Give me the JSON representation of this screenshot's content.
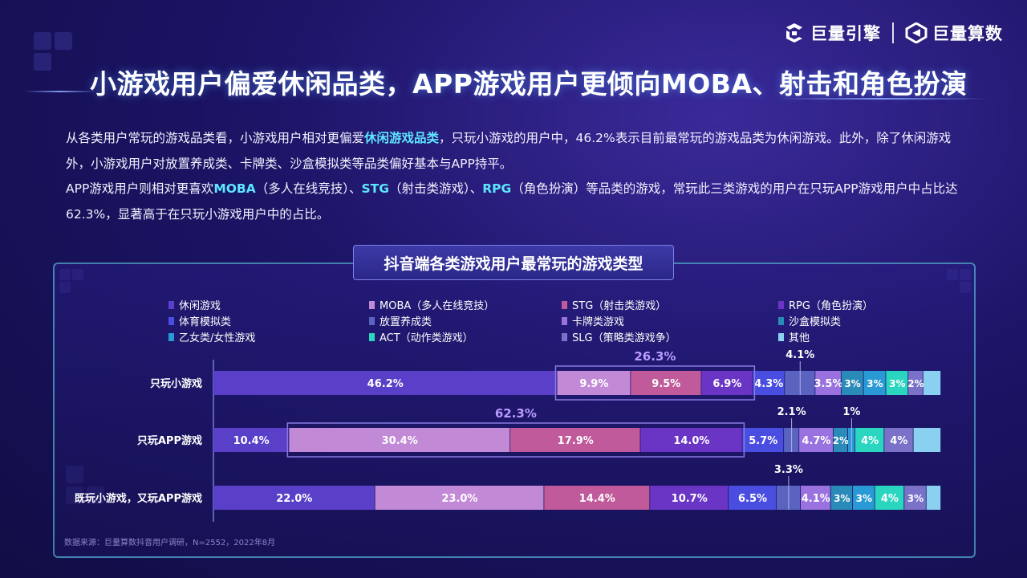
{
  "brand": {
    "logo1": "巨量引擎",
    "logo2": "巨量算数"
  },
  "title": "小游戏用户偏爱休闲品类，APP游戏用户更倾向MOBA、射击和角色扮演",
  "paragraphs": {
    "p1_a": "从各类用户常玩的游戏品类看，小游戏用户相对更偏爱",
    "p1_hl": "休闲游戏品类",
    "p1_b": "，只玩小游戏的用户中，46.2%表示目前最常玩的游戏品类为休闲游戏。此外，除了休闲游戏外，小游戏用户对放置养成类、卡牌类、沙盒模拟类等品类偏好基本与APP持平。",
    "p2_a": "APP游戏用户则相对更喜欢",
    "p2_hl1": "MOBA",
    "p2_b": "（多人在线竞技）、",
    "p2_hl2": "STG",
    "p2_c": "（射击类游戏）、",
    "p2_hl3": "RPG",
    "p2_d": "（角色扮演）等品类的游戏，常玩此三类游戏的用户在只玩APP游戏用户中占比达62.3%，显著高于在只玩小游戏用户中的占比。"
  },
  "source": "数据来源：巨量算数抖音用户调研，N=2552，2022年8月",
  "chart_data": {
    "type": "bar",
    "orientation": "horizontal",
    "stacked": true,
    "title": "抖音端各类游戏用户最常玩的游戏类型",
    "legend_position": "top",
    "categories": [
      "只玩小游戏",
      "只玩APP游戏",
      "既玩小游戏，又玩APP游戏"
    ],
    "series": [
      {
        "name": "休闲游戏",
        "color": "#5a3fc8",
        "values": [
          46.2,
          10.4,
          22.0
        ],
        "labels": [
          "46.2%",
          "10.4%",
          "22.0%"
        ]
      },
      {
        "name": "MOBA（多人在线竞技）",
        "color": "#c28ad6",
        "values": [
          9.9,
          30.4,
          23.0
        ],
        "labels": [
          "9.9%",
          "30.4%",
          "23.0%"
        ]
      },
      {
        "name": "STG（射击类游戏）",
        "color": "#c05a9a",
        "values": [
          9.5,
          17.9,
          14.4
        ],
        "labels": [
          "9.5%",
          "17.9%",
          "14.4%"
        ]
      },
      {
        "name": "RPG（角色扮演）",
        "color": "#6a35c4",
        "values": [
          6.9,
          14.0,
          10.7
        ],
        "labels": [
          "6.9%",
          "14.0%",
          "10.7%"
        ]
      },
      {
        "name": "体育模拟类",
        "color": "#4a4ee0",
        "values": [
          4.3,
          5.7,
          6.5
        ],
        "labels": [
          "4.3%",
          "5.7%",
          "6.5%"
        ]
      },
      {
        "name": "放置养成类",
        "color": "#5a64c0",
        "values": [
          4.1,
          2.1,
          3.3
        ],
        "labels": [
          "4.1%",
          "2.1%",
          "3.3%"
        ]
      },
      {
        "name": "卡牌类游戏",
        "color": "#9a72e0",
        "values": [
          3.5,
          4.7,
          4.1
        ],
        "labels": [
          "3.5%",
          "4.7%",
          "4.1%"
        ]
      },
      {
        "name": "沙盒模拟类",
        "color": "#2a8ab8",
        "values": [
          3,
          2,
          3
        ],
        "labels": [
          "3%",
          "2%",
          "3%"
        ]
      },
      {
        "name": "乙女类/女性游戏",
        "color": "#2a9ad6",
        "values": [
          3,
          1,
          3
        ],
        "labels": [
          "3%",
          "1%",
          "3%"
        ]
      },
      {
        "name": "ACT（动作类游戏）",
        "color": "#2ad6c0",
        "values": [
          3,
          4,
          4
        ],
        "labels": [
          "3%",
          "4%",
          "4%"
        ]
      },
      {
        "name": "SLG（策略类游戏争）",
        "color": "#7a72c8",
        "values": [
          2,
          4,
          3
        ],
        "labels": [
          "2%",
          "4%",
          "3%"
        ]
      },
      {
        "name": "其他",
        "color": "#8ad0f0",
        "values": [
          2.4,
          3.8,
          2.0
        ],
        "labels": [
          "",
          "",
          ""
        ]
      }
    ],
    "callouts": [
      {
        "category": "只玩小游戏",
        "text": "26.3%",
        "spans": [
          "MOBA（多人在线竞技）",
          "RPG（角色扮演）"
        ]
      },
      {
        "category": "只玩APP游戏",
        "text": "62.3%",
        "spans": [
          "MOBA（多人在线竞技）",
          "RPG（角色扮演）"
        ]
      }
    ],
    "outside_labels": [
      {
        "category": "只玩小游戏",
        "series": "放置养成类",
        "text": "4.1%"
      },
      {
        "category": "只玩APP游戏",
        "series": "放置养成类",
        "text": "2.1%"
      },
      {
        "category": "只玩APP游戏",
        "series": "乙女类/女性游戏",
        "text": "1%"
      },
      {
        "category": "既玩小游戏，又玩APP游戏",
        "series": "放置养成类",
        "text": "3.3%"
      }
    ]
  }
}
